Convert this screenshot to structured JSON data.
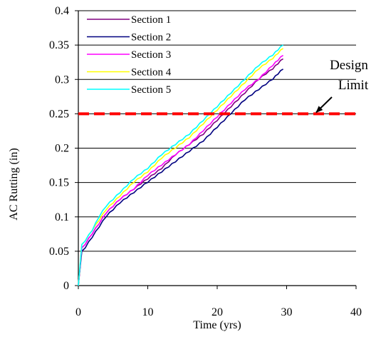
{
  "chart_data": {
    "type": "line",
    "xlabel": "Time (yrs)",
    "ylabel": "AC Rutting (in)",
    "xlim": [
      0,
      40
    ],
    "ylim": [
      0,
      0.4
    ],
    "x_ticks": [
      "0",
      "10",
      "20",
      "30",
      "40"
    ],
    "y_ticks": [
      "0",
      "0.05",
      "0.1",
      "0.15",
      "0.2",
      "0.25",
      "0.3",
      "0.35",
      "0.4"
    ],
    "grid": "horizontal",
    "legend_position": "top-left",
    "series": [
      {
        "name": "Section 1",
        "color": "#800080",
        "x": [
          0,
          0.5,
          1,
          2,
          3,
          4,
          5,
          6,
          8,
          10,
          12,
          14,
          16,
          18,
          20,
          22,
          24,
          26,
          28,
          29.5
        ],
        "y": [
          0,
          0.055,
          0.06,
          0.075,
          0.09,
          0.105,
          0.115,
          0.125,
          0.14,
          0.155,
          0.17,
          0.19,
          0.205,
          0.22,
          0.24,
          0.26,
          0.28,
          0.3,
          0.315,
          0.33
        ]
      },
      {
        "name": "Section 2",
        "color": "#000080",
        "x": [
          0,
          0.5,
          1,
          2,
          3,
          4,
          5,
          6,
          8,
          10,
          12,
          14,
          16,
          18,
          20,
          22,
          24,
          26,
          28,
          29.5
        ],
        "y": [
          0,
          0.05,
          0.055,
          0.07,
          0.085,
          0.1,
          0.11,
          0.12,
          0.135,
          0.15,
          0.165,
          0.18,
          0.195,
          0.21,
          0.23,
          0.25,
          0.27,
          0.285,
          0.3,
          0.315
        ]
      },
      {
        "name": "Section 3",
        "color": "#FF00FF",
        "x": [
          0,
          0.5,
          1,
          2,
          3,
          4,
          5,
          6,
          8,
          10,
          12,
          14,
          16,
          18,
          20,
          22,
          24,
          26,
          28,
          29.5
        ],
        "y": [
          0,
          0.055,
          0.06,
          0.075,
          0.09,
          0.105,
          0.115,
          0.125,
          0.14,
          0.16,
          0.175,
          0.19,
          0.205,
          0.225,
          0.245,
          0.265,
          0.285,
          0.3,
          0.32,
          0.335
        ]
      },
      {
        "name": "Section 4",
        "color": "#FFFF00",
        "x": [
          0,
          0.5,
          1,
          2,
          3,
          4,
          5,
          6,
          8,
          10,
          12,
          14,
          16,
          18,
          20,
          22,
          24,
          26,
          28,
          29.5
        ],
        "y": [
          0,
          0.06,
          0.065,
          0.08,
          0.095,
          0.11,
          0.12,
          0.13,
          0.15,
          0.165,
          0.185,
          0.2,
          0.215,
          0.235,
          0.255,
          0.275,
          0.295,
          0.315,
          0.33,
          0.345
        ]
      },
      {
        "name": "Section 5",
        "color": "#00FFFF",
        "x": [
          0,
          0.5,
          1,
          2,
          3,
          4,
          5,
          6,
          8,
          10,
          12,
          14,
          16,
          18,
          20,
          22,
          24,
          26,
          28,
          29.5
        ],
        "y": [
          0,
          0.06,
          0.065,
          0.08,
          0.1,
          0.115,
          0.125,
          0.135,
          0.155,
          0.17,
          0.19,
          0.205,
          0.22,
          0.24,
          0.26,
          0.28,
          0.3,
          0.32,
          0.335,
          0.35
        ]
      }
    ],
    "annotations": {
      "design_limit": {
        "value": 0.25,
        "color": "#FF0000",
        "label_line1": "Design",
        "label_line2": "Limit"
      }
    }
  }
}
